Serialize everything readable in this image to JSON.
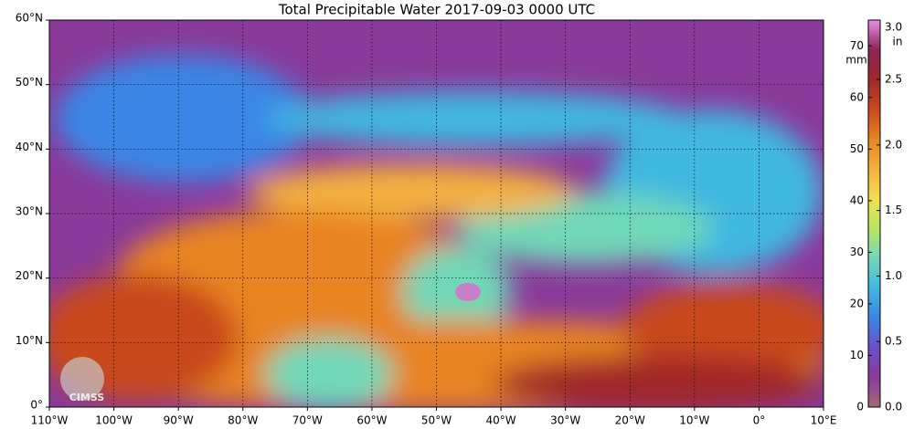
{
  "title": "Total Precipitable Water  2017-09-03 0000 UTC",
  "logo": "CIMSS",
  "map": {
    "xlim": [
      -110,
      10
    ],
    "ylim": [
      0,
      60
    ],
    "xticks": [
      {
        "value": -110,
        "label": "110°W"
      },
      {
        "value": -100,
        "label": "100°W"
      },
      {
        "value": -90,
        "label": "90°W"
      },
      {
        "value": -80,
        "label": "80°W"
      },
      {
        "value": -70,
        "label": "70°W"
      },
      {
        "value": -60,
        "label": "60°W"
      },
      {
        "value": -50,
        "label": "50°W"
      },
      {
        "value": -40,
        "label": "40°W"
      },
      {
        "value": -30,
        "label": "30°W"
      },
      {
        "value": -20,
        "label": "20°W"
      },
      {
        "value": -10,
        "label": "10°W"
      },
      {
        "value": 0,
        "label": "0°"
      },
      {
        "value": 10,
        "label": "10°E"
      }
    ],
    "yticks": [
      {
        "value": 0,
        "label": "0°"
      },
      {
        "value": 10,
        "label": "10°N"
      },
      {
        "value": 20,
        "label": "20°N"
      },
      {
        "value": 30,
        "label": "30°N"
      },
      {
        "value": 40,
        "label": "40°N"
      },
      {
        "value": 50,
        "label": "50°N"
      },
      {
        "value": 60,
        "label": "60°N"
      }
    ],
    "grid": true
  },
  "colorbar": {
    "unit_mm": "mm",
    "unit_in": "in",
    "mm_lim": [
      0,
      75
    ],
    "mm_ticks": [
      0,
      10,
      20,
      30,
      40,
      50,
      60,
      70
    ],
    "in_lim": [
      0,
      2.953
    ],
    "in_ticks": [
      {
        "value": 0,
        "label": "0.0"
      },
      {
        "value": 0.5,
        "label": "0.5"
      },
      {
        "value": 1,
        "label": "1.0"
      },
      {
        "value": 1.5,
        "label": "1.5"
      },
      {
        "value": 2,
        "label": "2.0"
      },
      {
        "value": 2.5,
        "label": "2.5"
      },
      {
        "value": 3,
        "label": "3.0"
      }
    ],
    "colors": [
      "#a06a78",
      "#8a3a9a",
      "#6a50c8",
      "#3a86e6",
      "#40b8e0",
      "#70d8b8",
      "#b8e660",
      "#f2e050",
      "#f4b040",
      "#e88424",
      "#c84a1e",
      "#a02828",
      "#8a2458",
      "#e890e8"
    ]
  }
}
